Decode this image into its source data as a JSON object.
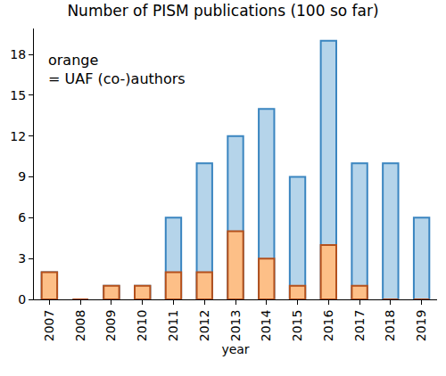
{
  "chart_data": {
    "type": "bar",
    "title": "Number of PISM publications (100 so far)",
    "x_label": "year",
    "annotation": "orange\n= UAF (co-)authors",
    "categories": [
      "2007",
      "2008",
      "2009",
      "2010",
      "2011",
      "2012",
      "2013",
      "2014",
      "2015",
      "2016",
      "2017",
      "2018",
      "2019"
    ],
    "series": [
      {
        "color": "#b5d4ea",
        "values": [
          2,
          0,
          1,
          1,
          6,
          10,
          12,
          14,
          9,
          19,
          10,
          10,
          6
        ]
      },
      {
        "color": "#fdbf87",
        "values": [
          2,
          0,
          1,
          1,
          2,
          2,
          5,
          3,
          1,
          4,
          1,
          0,
          0
        ]
      }
    ],
    "stacked": false,
    "grid": false,
    "ylim": [
      0,
      19.9
    ],
    "yticks": [
      0,
      3,
      6,
      9,
      12,
      15,
      18
    ]
  }
}
